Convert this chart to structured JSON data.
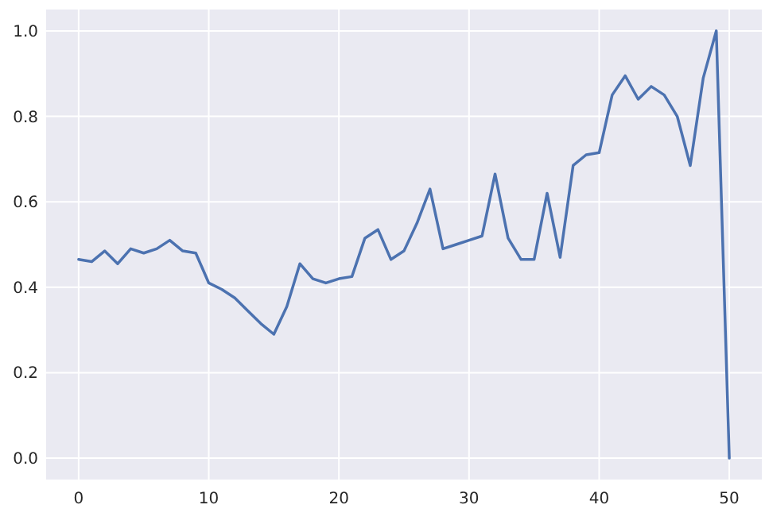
{
  "chart_data": {
    "type": "line",
    "x": [
      0,
      1,
      2,
      3,
      4,
      5,
      6,
      7,
      8,
      9,
      10,
      11,
      12,
      13,
      14,
      15,
      16,
      17,
      18,
      19,
      20,
      21,
      22,
      23,
      24,
      25,
      26,
      27,
      28,
      29,
      30,
      31,
      32,
      33,
      34,
      35,
      36,
      37,
      38,
      39,
      40,
      41,
      42,
      43,
      44,
      45,
      46,
      47,
      48,
      49,
      50
    ],
    "series": [
      {
        "color": "#4c72b0",
        "values": [
          0.465,
          0.46,
          0.485,
          0.455,
          0.49,
          0.48,
          0.49,
          0.51,
          0.485,
          0.48,
          0.41,
          0.395,
          0.375,
          0.345,
          0.315,
          0.29,
          0.355,
          0.455,
          0.42,
          0.41,
          0.42,
          0.425,
          0.515,
          0.535,
          0.465,
          0.485,
          0.55,
          0.63,
          0.49,
          0.5,
          0.51,
          0.52,
          0.665,
          0.515,
          0.465,
          0.465,
          0.62,
          0.47,
          0.685,
          0.71,
          0.715,
          0.85,
          0.895,
          0.84,
          0.87,
          0.85,
          0.8,
          0.685,
          0.89,
          1.0,
          0.0
        ]
      }
    ],
    "xlim": [
      -2.5,
      52.5
    ],
    "xticks": [
      0,
      10,
      20,
      30,
      40,
      50
    ],
    "ylim": [
      -0.05,
      1.05
    ],
    "yticks": [
      {
        "value": 0,
        "label": "0.0"
      },
      {
        "value": 0.2,
        "label": "0.2"
      },
      {
        "value": 0.4,
        "label": "0.4"
      },
      {
        "value": 0.6,
        "label": "0.6"
      },
      {
        "value": 0.8,
        "label": "0.8"
      },
      {
        "value": 1,
        "label": "1.0"
      }
    ],
    "grid": true,
    "marker": "none",
    "line_style": "solid"
  }
}
